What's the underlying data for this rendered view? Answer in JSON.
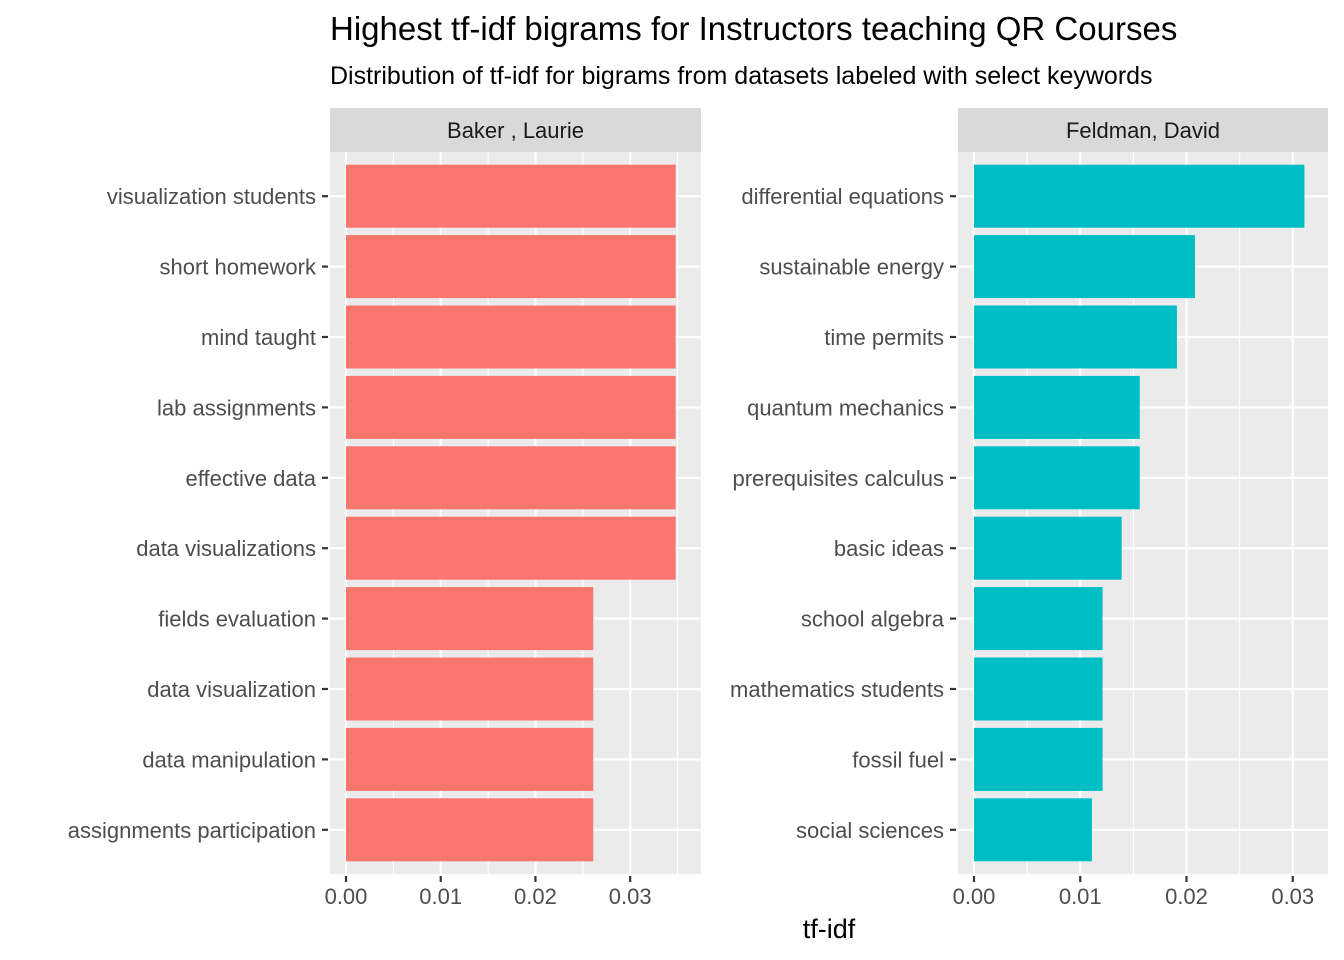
{
  "chart_data": {
    "type": "bar",
    "orientation": "horizontal",
    "title": "Highest tf-idf bigrams for Instructors teaching QR Courses",
    "subtitle": "Distribution of tf-idf for bigrams from datasets labeled with select keywords",
    "xlabel": "tf-idf",
    "ylabel": "",
    "legend": "none",
    "grid": true,
    "panels": [
      {
        "facet": "Baker , Laurie",
        "color": "#F8766D",
        "xlim": [
          0,
          0.036
        ],
        "ticks": [
          0.0,
          0.01,
          0.02,
          0.03
        ],
        "tick_labels": [
          "0.00",
          "0.01",
          "0.02",
          "0.03"
        ],
        "categories": [
          "visualization students",
          "short homework",
          "mind taught",
          "lab assignments",
          "effective data",
          "data visualizations",
          "fields evaluation",
          "data visualization",
          "data manipulation",
          "assignments participation"
        ],
        "values": [
          0.0348,
          0.0348,
          0.0348,
          0.0348,
          0.0348,
          0.0348,
          0.0261,
          0.0261,
          0.0261,
          0.0261
        ]
      },
      {
        "facet": "Feldman, David",
        "color": "#00BFC4",
        "xlim": [
          0,
          0.032
        ],
        "ticks": [
          0.0,
          0.01,
          0.02,
          0.03
        ],
        "tick_labels": [
          "0.00",
          "0.01",
          "0.02",
          "0.03"
        ],
        "categories": [
          "differential equations",
          "sustainable energy",
          "time permits",
          "quantum mechanics",
          "prerequisites calculus",
          "basic ideas",
          "school algebra",
          "mathematics students",
          "fossil fuel",
          "social sciences"
        ],
        "values": [
          0.0311,
          0.0208,
          0.0191,
          0.0156,
          0.0156,
          0.0139,
          0.0121,
          0.0121,
          0.0121,
          0.0111
        ]
      }
    ]
  }
}
